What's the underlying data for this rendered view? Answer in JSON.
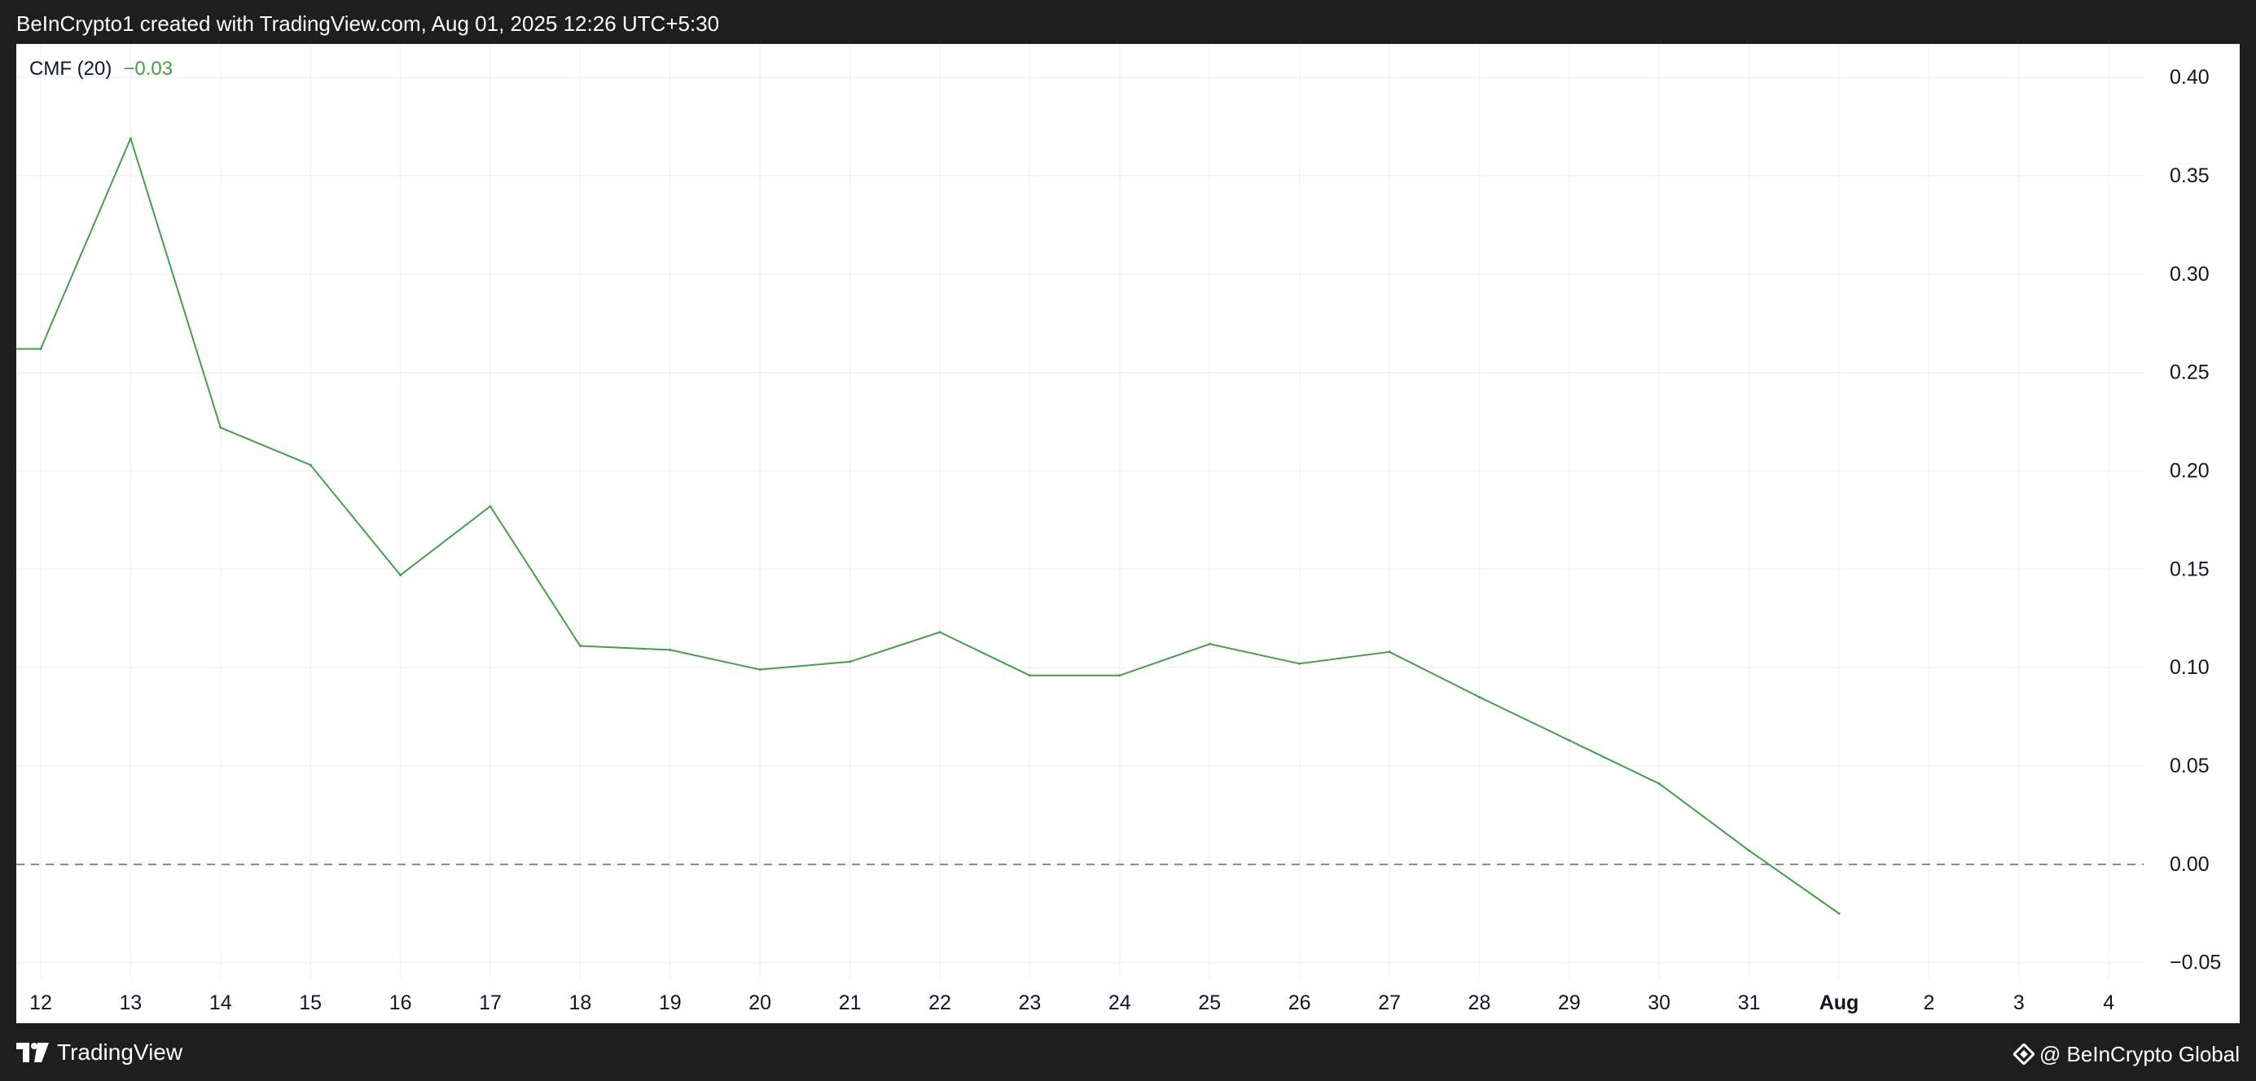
{
  "header": {
    "attribution": "BeInCrypto1 created with TradingView.com, Aug 01, 2025 12:26 UTC+5:30"
  },
  "legend": {
    "name": "CMF (20)",
    "value": "−0.03",
    "value_color": "#43a047"
  },
  "footer": {
    "tv_label": "TradingView",
    "bic_label": "@ BeInCrypto Global"
  },
  "chart_data": {
    "type": "line",
    "x_tick_labels": [
      "12",
      "13",
      "14",
      "15",
      "16",
      "17",
      "18",
      "19",
      "20",
      "21",
      "22",
      "23",
      "24",
      "25",
      "26",
      "27",
      "28",
      "29",
      "30",
      "31",
      "Aug",
      "2",
      "3",
      "4"
    ],
    "x_tick_bold": [
      "Aug"
    ],
    "y_tick_labels": [
      "0.40",
      "0.35",
      "0.30",
      "0.25",
      "0.20",
      "0.15",
      "0.10",
      "0.05",
      "0.00",
      "−0.05"
    ],
    "y_ticks": [
      0.4,
      0.35,
      0.3,
      0.25,
      0.2,
      0.15,
      0.1,
      0.05,
      0.0,
      -0.05
    ],
    "ylim": [
      -0.058,
      0.417
    ],
    "y_axis_position": "right",
    "grid": true,
    "zero_line": {
      "value": 0.0,
      "style": "dashed",
      "color": "#888888"
    },
    "series": [
      {
        "color": "#43a047",
        "x": [
          "12",
          "13",
          "14",
          "15",
          "16",
          "17",
          "18",
          "19",
          "20",
          "21",
          "22",
          "23",
          "24",
          "25",
          "26",
          "27",
          "28",
          "29",
          "30",
          "31",
          "Aug"
        ],
        "values": [
          0.262,
          0.369,
          0.222,
          0.203,
          0.147,
          0.182,
          0.111,
          0.109,
          0.099,
          0.103,
          0.118,
          0.096,
          0.096,
          0.112,
          0.102,
          0.108,
          0.085,
          0.063,
          0.041,
          0.007,
          -0.025
        ]
      }
    ]
  }
}
